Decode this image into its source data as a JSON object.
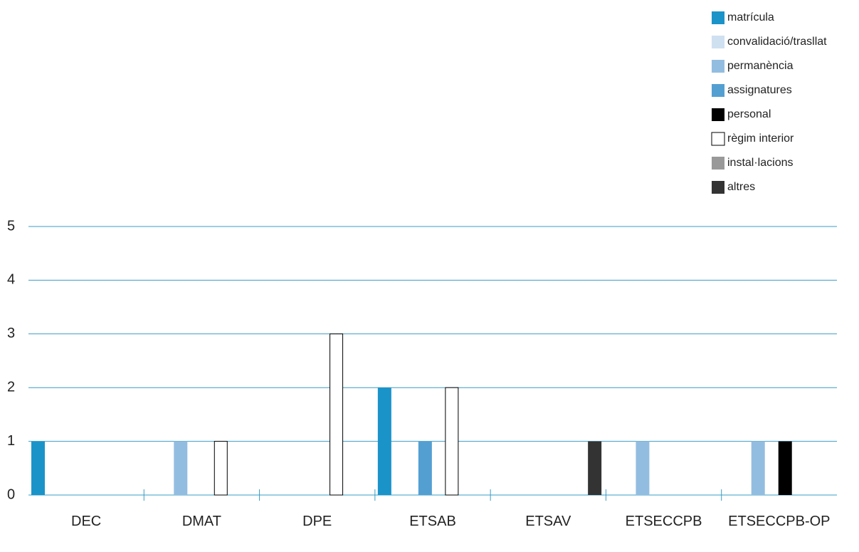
{
  "chart_data": {
    "type": "bar",
    "categories": [
      "DEC",
      "DMAT",
      "DPE",
      "ETSAB",
      "ETSAV",
      "ETSECCPB",
      "ETSECCPB-OP"
    ],
    "series": [
      {
        "name": "matrícula",
        "color": "#1a93c9",
        "values": [
          1,
          0,
          0,
          2,
          0,
          0,
          0
        ]
      },
      {
        "name": "convalidació/trasllat",
        "color": "#cfe0f1",
        "values": [
          0,
          0,
          0,
          0,
          0,
          0,
          0
        ]
      },
      {
        "name": "permanència",
        "color": "#93bde0",
        "values": [
          0,
          1,
          0,
          0,
          0,
          1,
          1
        ]
      },
      {
        "name": "assignatures",
        "color": "#549fd2",
        "values": [
          0,
          0,
          0,
          1,
          0,
          0,
          0
        ]
      },
      {
        "name": "personal",
        "color": "#000000",
        "values": [
          0,
          0,
          0,
          0,
          0,
          0,
          1
        ]
      },
      {
        "name": "règim interior",
        "color": "#ffffff",
        "values": [
          0,
          1,
          3,
          2,
          0,
          0,
          0
        ]
      },
      {
        "name": "instal·lacions",
        "color": "#999999",
        "values": [
          0,
          0,
          0,
          0,
          0,
          0,
          0
        ]
      },
      {
        "name": "altres",
        "color": "#333333",
        "values": [
          0,
          0,
          0,
          0,
          1,
          0,
          0
        ]
      }
    ],
    "ylim": [
      0,
      5
    ],
    "yticks": [
      0,
      1,
      2,
      3,
      4,
      5
    ],
    "grid": true,
    "legend": "top-right"
  }
}
